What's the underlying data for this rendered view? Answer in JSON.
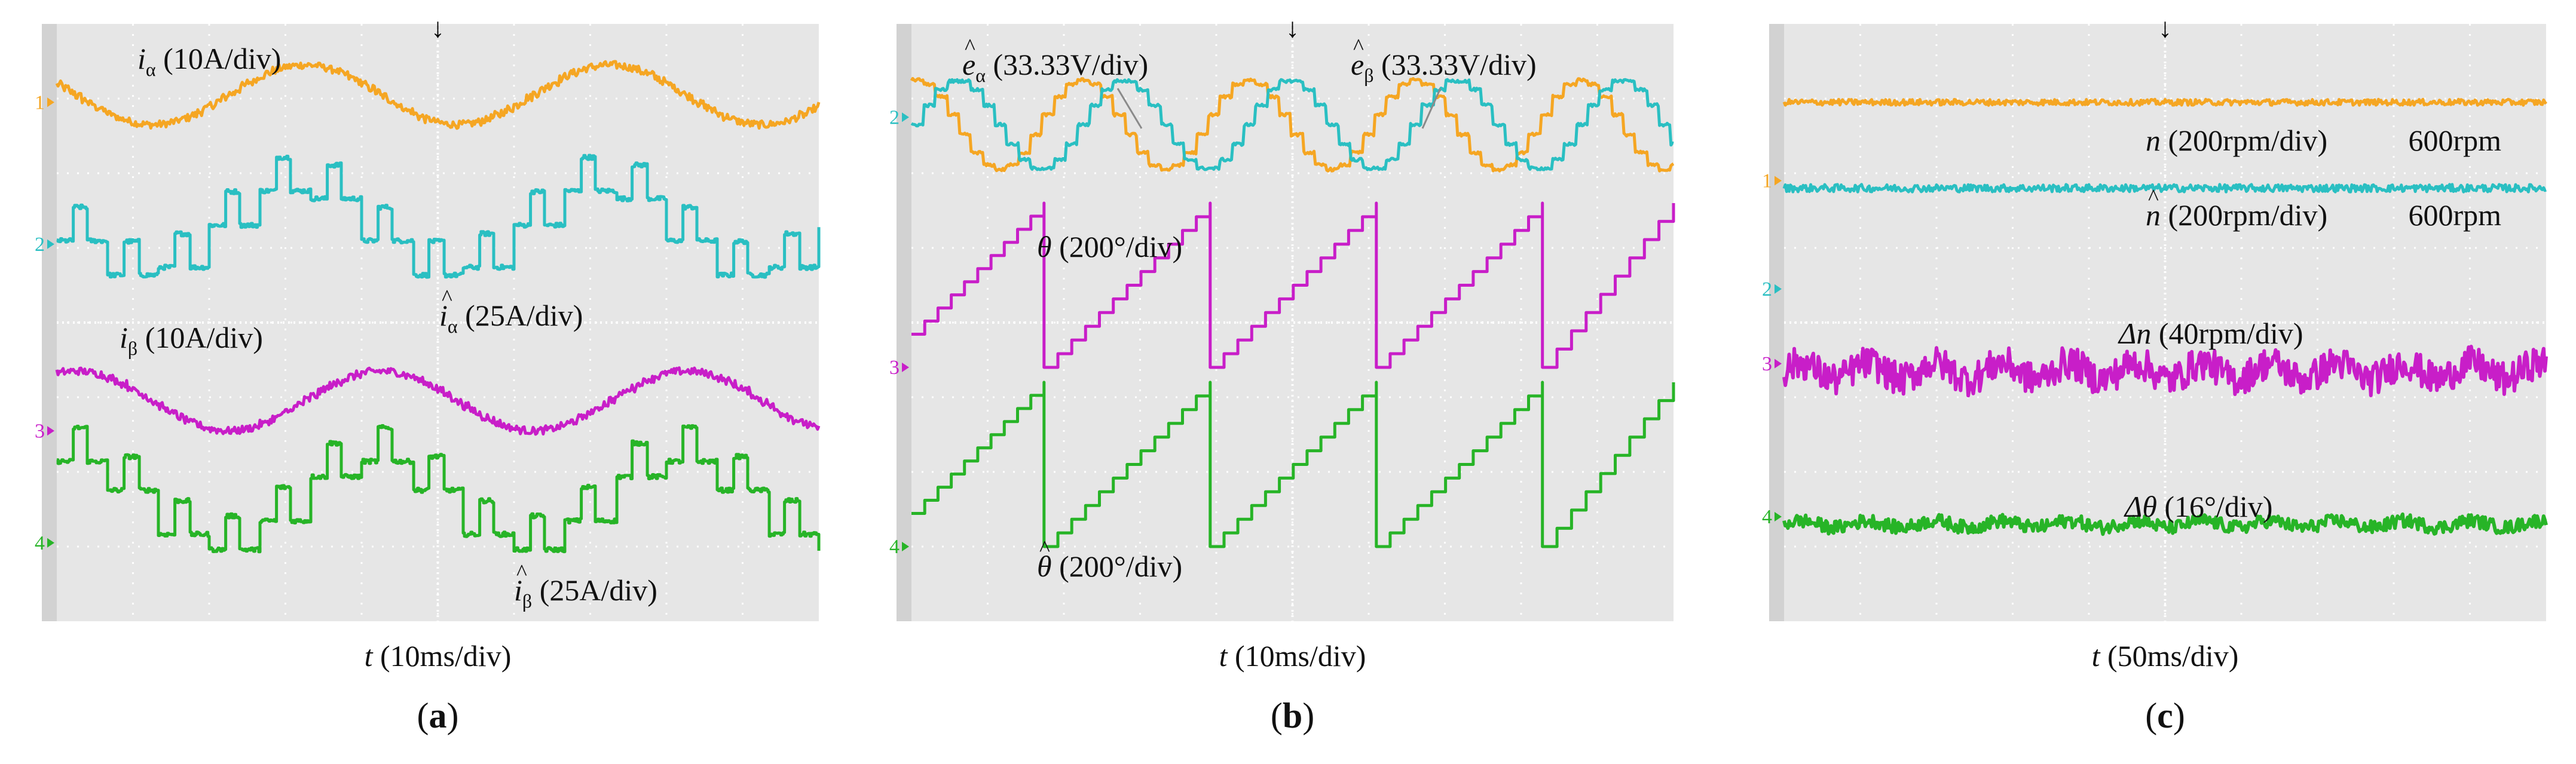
{
  "colors": {
    "ch1": "#F5A623",
    "ch2": "#2ABFC2",
    "ch3": "#C81EC8",
    "ch4": "#27B427",
    "screen_bg": "#E6E6E6",
    "bezel": "#D2D2D2",
    "grid": "#FFFFFF",
    "text": "#111111"
  },
  "chart_data": [
    {
      "id": "a",
      "type": "line",
      "panel_label": "(a)",
      "xlabel_var": "t",
      "xlabel_unit": " (10ms/div)",
      "xlim": [
        0,
        100
      ],
      "x_unit": "ms",
      "grid": "10x8 divisions, dotted",
      "trigger_marker": "↓",
      "channel_markers": [
        {
          "ch": "1",
          "color_key": "ch1",
          "level": 6.95
        },
        {
          "ch": "2",
          "color_key": "ch2",
          "level": 5.05
        },
        {
          "ch": "3",
          "color_key": "ch3",
          "level": 2.55
        },
        {
          "ch": "4",
          "color_key": "ch4",
          "level": 1.05
        }
      ],
      "series": [
        {
          "name": "i_alpha",
          "color_key": "ch1",
          "kind": "sine",
          "offset_div": 7.05,
          "amp_div": 0.4,
          "period_ms": 40,
          "phase_deg": 160,
          "steps": 48,
          "noise": 0.05
        },
        {
          "name": "i_alpha_hat",
          "color_key": "ch2",
          "kind": "stair",
          "offset_div": 5.2,
          "amp_div": 0.6,
          "period_ms": 40,
          "phase_deg": 160,
          "noise": 0.03
        },
        {
          "name": "i_beta",
          "color_key": "ch3",
          "kind": "sine",
          "offset_div": 2.95,
          "amp_div": 0.4,
          "period_ms": 40,
          "phase_deg": 70,
          "steps": 48,
          "noise": 0.05
        },
        {
          "name": "i_beta_hat",
          "color_key": "ch4",
          "kind": "stair",
          "offset_div": 1.55,
          "amp_div": 0.6,
          "period_ms": 40,
          "phase_deg": 70,
          "noise": 0.03
        }
      ],
      "annotations": [
        {
          "sym": "i",
          "sub": "α",
          "hat": false,
          "text": " (10A/div)",
          "color_key": "text"
        },
        {
          "sym": "i",
          "sub": "α",
          "hat": true,
          "text": " (25A/div)",
          "color_key": "text"
        },
        {
          "sym": "i",
          "sub": "β",
          "hat": false,
          "text": " (10A/div)",
          "color_key": "text"
        },
        {
          "sym": "i",
          "sub": "β",
          "hat": true,
          "text": " (25A/div)",
          "color_key": "text"
        }
      ]
    },
    {
      "id": "b",
      "type": "line",
      "panel_label": "(b)",
      "xlabel_var": "t",
      "xlabel_unit": " (10ms/div)",
      "xlim": [
        0,
        100
      ],
      "x_unit": "ms",
      "grid": "10x8 divisions, dotted",
      "trigger_marker": "↓",
      "channel_markers": [
        {
          "ch": "2",
          "color_key": "ch2",
          "level": 6.75
        },
        {
          "ch": "3",
          "color_key": "ch3",
          "level": 3.4
        },
        {
          "ch": "4",
          "color_key": "ch4",
          "level": 1.0
        }
      ],
      "series": [
        {
          "name": "e_alpha_hat",
          "color_key": "ch1",
          "kind": "sine",
          "offset_div": 6.65,
          "amp_div": 0.6,
          "period_ms": 21.8,
          "phase_deg": 90,
          "steps": 14,
          "noise": 0.02
        },
        {
          "name": "e_beta_hat",
          "color_key": "ch2",
          "kind": "sine",
          "offset_div": 6.65,
          "amp_div": 0.6,
          "period_ms": 21.8,
          "phase_deg": 0,
          "steps": 14,
          "noise": 0.02
        },
        {
          "name": "theta",
          "color_key": "ch3",
          "kind": "saw",
          "low_div": 3.4,
          "high_div": 5.6,
          "period_ms": 21.8,
          "resets_ms": [
            17.4,
            39.2,
            61.0,
            82.8
          ],
          "steps": 12
        },
        {
          "name": "theta_hat",
          "color_key": "ch4",
          "kind": "saw",
          "low_div": 1.0,
          "high_div": 3.2,
          "period_ms": 21.8,
          "resets_ms": [
            17.4,
            39.2,
            61.0,
            82.8
          ],
          "steps": 12
        }
      ],
      "annotations": [
        {
          "sym": "e",
          "sub": "α",
          "hat": true,
          "text": " (33.33V/div)",
          "color_key": "text"
        },
        {
          "sym": "e",
          "sub": "β",
          "hat": true,
          "text": " (33.33V/div)",
          "color_key": "text"
        },
        {
          "sym": "θ",
          "sub": "",
          "hat": false,
          "text": " (200°/div)",
          "color_key": "text"
        },
        {
          "sym": "θ",
          "sub": "",
          "hat": true,
          "text": " (200°/div)",
          "color_key": "text"
        }
      ]
    },
    {
      "id": "c",
      "type": "line",
      "panel_label": "(c)",
      "xlabel_var": "t",
      "xlabel_unit": " (50ms/div)",
      "xlim": [
        0,
        500
      ],
      "x_unit": "ms",
      "grid": "10x8 divisions, dotted",
      "trigger_marker": "↓",
      "channel_markers": [
        {
          "ch": "1",
          "color_key": "ch1",
          "level": 5.9
        },
        {
          "ch": "2",
          "color_key": "ch2",
          "level": 4.45
        },
        {
          "ch": "3",
          "color_key": "ch3",
          "level": 3.45
        },
        {
          "ch": "4",
          "color_key": "ch4",
          "level": 1.4
        }
      ],
      "series": [
        {
          "name": "n",
          "color_key": "ch1",
          "kind": "flat",
          "offset_div": 6.95,
          "noise": 0.04,
          "value_text": "600rpm"
        },
        {
          "name": "n_hat",
          "color_key": "ch2",
          "kind": "flat",
          "offset_div": 5.8,
          "noise": 0.05,
          "value_text": "600rpm"
        },
        {
          "name": "delta_n",
          "color_key": "ch3",
          "kind": "noise",
          "offset_div": 3.35,
          "noise": 0.22
        },
        {
          "name": "delta_theta",
          "color_key": "ch4",
          "kind": "noise",
          "offset_div": 1.3,
          "noise": 0.09
        }
      ],
      "annotations": [
        {
          "sym": "n",
          "sub": "",
          "hat": false,
          "text": " (200rpm/div)",
          "color_key": "text",
          "value": "600rpm"
        },
        {
          "sym": "n",
          "sub": "",
          "hat": true,
          "text": " (200rpm/div)",
          "color_key": "text",
          "value": "600rpm"
        },
        {
          "sym": "Δn",
          "sub": "",
          "hat": false,
          "text": " (40rpm/div)",
          "color_key": "text"
        },
        {
          "sym": "Δθ",
          "sub": "",
          "hat": false,
          "text": " (16°/div)",
          "color_key": "text"
        }
      ]
    }
  ]
}
